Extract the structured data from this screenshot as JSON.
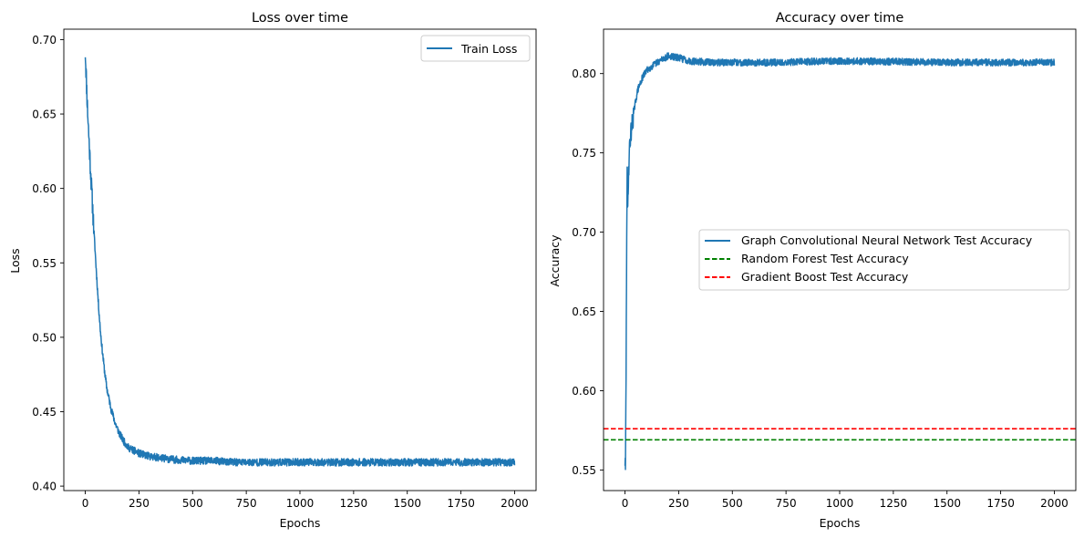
{
  "chart_data": [
    {
      "type": "line",
      "title": "Loss over time",
      "xlabel": "Epochs",
      "ylabel": "Loss",
      "xlim": [
        -100,
        2100
      ],
      "ylim": [
        0.397,
        0.707
      ],
      "xticks": [
        0,
        250,
        500,
        750,
        1000,
        1250,
        1500,
        1750,
        2000
      ],
      "yticks": [
        0.4,
        0.45,
        0.5,
        0.55,
        0.6,
        0.65,
        0.7
      ],
      "ytick_labels": [
        "0.40",
        "0.45",
        "0.50",
        "0.55",
        "0.60",
        "0.65",
        "0.70"
      ],
      "grid": false,
      "legend_position": "upper right",
      "series": [
        {
          "name": "Train Loss",
          "color": "#1f77b4",
          "style": "solid",
          "x": [
            0,
            10,
            20,
            30,
            40,
            50,
            60,
            70,
            80,
            90,
            100,
            120,
            140,
            160,
            180,
            200,
            250,
            300,
            350,
            400,
            500,
            600,
            700,
            800,
            900,
            1000,
            1200,
            1400,
            1600,
            1800,
            2000
          ],
          "values": [
            0.692,
            0.655,
            0.625,
            0.598,
            0.572,
            0.548,
            0.525,
            0.505,
            0.49,
            0.477,
            0.466,
            0.452,
            0.442,
            0.435,
            0.43,
            0.426,
            0.422,
            0.42,
            0.419,
            0.418,
            0.417,
            0.417,
            0.416,
            0.416,
            0.416,
            0.416,
            0.416,
            0.416,
            0.416,
            0.416,
            0.416
          ],
          "noise_amplitude": 0.0025
        }
      ]
    },
    {
      "type": "line",
      "title": "Accuracy over time",
      "xlabel": "Epochs",
      "ylabel": "Accuracy",
      "xlim": [
        -100,
        2100
      ],
      "ylim": [
        0.537,
        0.828
      ],
      "xticks": [
        0,
        250,
        500,
        750,
        1000,
        1250,
        1500,
        1750,
        2000
      ],
      "yticks": [
        0.55,
        0.6,
        0.65,
        0.7,
        0.75,
        0.8
      ],
      "ytick_labels": [
        "0.55",
        "0.60",
        "0.65",
        "0.70",
        "0.75",
        "0.80"
      ],
      "grid": false,
      "legend_position": "center right",
      "series": [
        {
          "name": "Graph Convolutional Neural Network Test Accuracy",
          "color": "#1f77b4",
          "style": "solid",
          "x": [
            0,
            2,
            5,
            8,
            10,
            12,
            15,
            20,
            25,
            30,
            40,
            50,
            60,
            80,
            100,
            130,
            160,
            200,
            250,
            300,
            400,
            500,
            700,
            1000,
            1500,
            2000
          ],
          "values": [
            0.556,
            0.548,
            0.61,
            0.7,
            0.735,
            0.71,
            0.73,
            0.75,
            0.76,
            0.765,
            0.775,
            0.783,
            0.79,
            0.797,
            0.802,
            0.805,
            0.808,
            0.811,
            0.81,
            0.808,
            0.807,
            0.807,
            0.807,
            0.808,
            0.807,
            0.807
          ],
          "noise_amplitude": 0.0022
        },
        {
          "name": "Random Forest Test Accuracy",
          "color": "#008000",
          "style": "dashed",
          "y": 0.569
        },
        {
          "name": "Gradient Boost Test Accuracy",
          "color": "#ff0000",
          "style": "dashed",
          "y": 0.576
        }
      ]
    }
  ]
}
